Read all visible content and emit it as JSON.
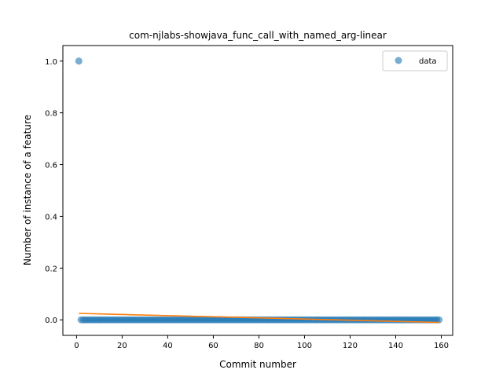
{
  "chart_data": {
    "type": "scatter",
    "title": "com-njlabs-showjava_func_call_with_named_arg-linear",
    "xlabel": "Commit number",
    "ylabel": "Number of instance of a feature",
    "xlim": [
      -6,
      165
    ],
    "ylim": [
      -0.06,
      1.06
    ],
    "xticks": [
      0,
      20,
      40,
      60,
      80,
      100,
      120,
      140,
      160
    ],
    "yticks": [
      0.0,
      0.2,
      0.4,
      0.6,
      0.8,
      1.0
    ],
    "ytick_labels": [
      "0.0",
      "0.2",
      "0.4",
      "0.6",
      "0.8",
      "1.0"
    ],
    "grid": false,
    "legend_position": "top-right",
    "series": [
      {
        "name": "data",
        "kind": "scatter",
        "color": "#1f77b4",
        "points": {
          "first": [
            1,
            1.0
          ],
          "rest_x_range": [
            2,
            159
          ],
          "rest_y": 0.0
        }
      },
      {
        "kind": "line",
        "color": "#ff7f0e",
        "x": [
          1,
          159
        ],
        "y": [
          0.025,
          -0.01
        ]
      }
    ]
  }
}
